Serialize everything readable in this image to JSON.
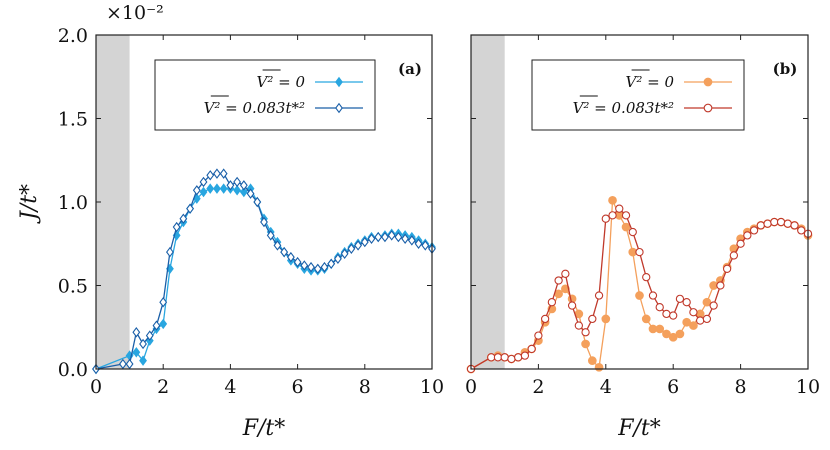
{
  "chart_data": [
    {
      "type": "line",
      "panel_label": "(a)",
      "xlabel": "F/t*",
      "ylabel": "J/t*",
      "y_multiplier": "×10⁻²",
      "xlim": [
        0,
        10
      ],
      "ylim": [
        0,
        2.0
      ],
      "xticks": [
        "0",
        "2",
        "4",
        "6",
        "8",
        "10"
      ],
      "yticks": [
        "0.0",
        "0.5",
        "1.0",
        "1.5",
        "2.0"
      ],
      "shaded_region_x": [
        0,
        1
      ],
      "legend_position": "top-right",
      "series": [
        {
          "name": "V² = 0",
          "color": "#29a6e0",
          "marker": "filled-diamond",
          "x": [
            0,
            1.0,
            1.2,
            1.4,
            1.6,
            1.8,
            2.0,
            2.2,
            2.4,
            2.6,
            2.8,
            3.0,
            3.2,
            3.4,
            3.6,
            3.8,
            4.0,
            4.2,
            4.4,
            4.6,
            4.8,
            5.0,
            5.2,
            5.4,
            5.6,
            5.8,
            6.0,
            6.2,
            6.4,
            6.6,
            6.8,
            7.0,
            7.2,
            7.4,
            7.6,
            7.8,
            8.0,
            8.2,
            8.4,
            8.6,
            8.8,
            9.0,
            9.2,
            9.4,
            9.6,
            9.8,
            10.0
          ],
          "y": [
            0.0,
            0.08,
            0.1,
            0.05,
            0.17,
            0.24,
            0.27,
            0.6,
            0.8,
            0.88,
            0.96,
            1.02,
            1.06,
            1.08,
            1.08,
            1.08,
            1.08,
            1.07,
            1.06,
            1.08,
            1.0,
            0.9,
            0.82,
            0.76,
            0.7,
            0.65,
            0.63,
            0.6,
            0.59,
            0.59,
            0.6,
            0.63,
            0.67,
            0.7,
            0.73,
            0.75,
            0.77,
            0.79,
            0.79,
            0.8,
            0.81,
            0.81,
            0.8,
            0.79,
            0.77,
            0.75,
            0.73
          ]
        },
        {
          "name": "V² = 0.083t*²",
          "color": "#1a5fa8",
          "marker": "open-diamond",
          "x": [
            0,
            0.8,
            1.0,
            1.2,
            1.4,
            1.6,
            1.8,
            2.0,
            2.2,
            2.4,
            2.6,
            2.8,
            3.0,
            3.2,
            3.4,
            3.6,
            3.8,
            4.0,
            4.2,
            4.4,
            4.6,
            4.8,
            5.0,
            5.2,
            5.4,
            5.6,
            5.8,
            6.0,
            6.2,
            6.4,
            6.6,
            6.8,
            7.0,
            7.2,
            7.4,
            7.6,
            7.8,
            8.0,
            8.2,
            8.4,
            8.6,
            8.8,
            9.0,
            9.2,
            9.4,
            9.6,
            9.8,
            10.0
          ],
          "y": [
            0.0,
            0.03,
            0.03,
            0.22,
            0.15,
            0.2,
            0.26,
            0.4,
            0.7,
            0.85,
            0.9,
            0.96,
            1.07,
            1.12,
            1.16,
            1.17,
            1.17,
            1.1,
            1.12,
            1.1,
            1.05,
            1.0,
            0.88,
            0.8,
            0.74,
            0.7,
            0.67,
            0.64,
            0.62,
            0.61,
            0.6,
            0.61,
            0.63,
            0.66,
            0.69,
            0.72,
            0.74,
            0.76,
            0.78,
            0.79,
            0.79,
            0.8,
            0.79,
            0.78,
            0.77,
            0.75,
            0.74,
            0.72
          ]
        }
      ]
    },
    {
      "type": "line",
      "panel_label": "(b)",
      "xlabel": "F/t*",
      "xlim": [
        0,
        10
      ],
      "ylim": [
        0,
        2.0
      ],
      "xticks": [
        "0",
        "2",
        "4",
        "6",
        "8",
        "10"
      ],
      "shaded_region_x": [
        0,
        1
      ],
      "legend_position": "top-right",
      "series": [
        {
          "name": "V² = 0",
          "color": "#f4a05c",
          "marker": "filled-circle",
          "x": [
            0,
            0.6,
            0.8,
            1.0,
            1.2,
            1.4,
            1.6,
            1.8,
            2.0,
            2.2,
            2.4,
            2.6,
            2.8,
            3.0,
            3.2,
            3.4,
            3.6,
            3.8,
            4.0,
            4.2,
            4.4,
            4.6,
            4.8,
            5.0,
            5.2,
            5.4,
            5.6,
            5.8,
            6.0,
            6.2,
            6.4,
            6.6,
            6.8,
            7.0,
            7.2,
            7.4,
            7.6,
            7.8,
            8.0,
            8.2,
            8.4,
            8.6,
            8.8,
            9.0,
            9.2,
            9.4,
            9.6,
            9.8,
            10.0
          ],
          "y": [
            0.0,
            0.07,
            0.08,
            0.07,
            0.06,
            0.07,
            0.1,
            0.12,
            0.17,
            0.28,
            0.36,
            0.45,
            0.48,
            0.42,
            0.33,
            0.15,
            0.05,
            0.01,
            0.3,
            1.01,
            0.92,
            0.85,
            0.7,
            0.44,
            0.3,
            0.24,
            0.24,
            0.21,
            0.19,
            0.21,
            0.28,
            0.26,
            0.33,
            0.4,
            0.5,
            0.53,
            0.61,
            0.72,
            0.78,
            0.82,
            0.84,
            0.86,
            0.87,
            0.88,
            0.88,
            0.87,
            0.86,
            0.84,
            0.8
          ]
        },
        {
          "name": "V² = 0.083t*²",
          "color": "#c0392b",
          "marker": "open-circle",
          "x": [
            0,
            0.6,
            0.8,
            1.0,
            1.2,
            1.4,
            1.6,
            1.8,
            2.0,
            2.2,
            2.4,
            2.6,
            2.8,
            3.0,
            3.2,
            3.4,
            3.6,
            3.8,
            4.0,
            4.2,
            4.4,
            4.6,
            4.8,
            5.0,
            5.2,
            5.4,
            5.6,
            5.8,
            6.0,
            6.2,
            6.4,
            6.6,
            6.8,
            7.0,
            7.2,
            7.4,
            7.6,
            7.8,
            8.0,
            8.2,
            8.4,
            8.6,
            8.8,
            9.0,
            9.2,
            9.4,
            9.6,
            9.8,
            10.0
          ],
          "y": [
            0.0,
            0.07,
            0.07,
            0.07,
            0.06,
            0.07,
            0.08,
            0.12,
            0.2,
            0.3,
            0.4,
            0.53,
            0.57,
            0.38,
            0.26,
            0.22,
            0.3,
            0.44,
            0.9,
            0.92,
            0.96,
            0.92,
            0.82,
            0.7,
            0.55,
            0.44,
            0.37,
            0.33,
            0.32,
            0.42,
            0.4,
            0.34,
            0.29,
            0.3,
            0.38,
            0.5,
            0.6,
            0.68,
            0.75,
            0.8,
            0.83,
            0.86,
            0.87,
            0.88,
            0.88,
            0.87,
            0.86,
            0.83,
            0.81
          ]
        }
      ]
    }
  ]
}
